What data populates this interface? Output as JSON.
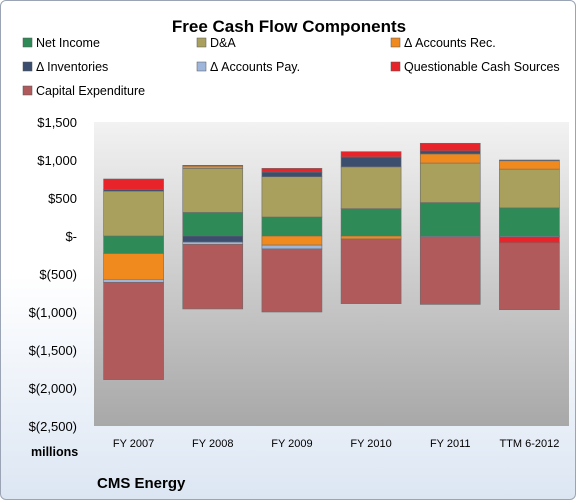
{
  "chart_data": {
    "type": "bar",
    "stacked": true,
    "title": "Free Cash Flow Components",
    "categories": [
      "FY 2007",
      "FY 2008",
      "FY 2009",
      "FY 2010",
      "FY 2011",
      "TTM 6-2012"
    ],
    "y_tick_labels": [
      "$1,500",
      "$1,000",
      "$500",
      "$-",
      "$(500)",
      "$(1,000)",
      "$(1,500)",
      "$(2,000)",
      "$(2,500)"
    ],
    "ylim": [
      -2500,
      1500
    ],
    "units_label": "millions",
    "footer": "CMS Energy",
    "grid": false,
    "legend_position": "top",
    "series": [
      {
        "name": "Net Income",
        "color": "#2e8b57",
        "values": [
          -230,
          310,
          250,
          360,
          440,
          370
        ]
      },
      {
        "name": "D&A",
        "color": "#a9a05e",
        "values": [
          590,
          580,
          530,
          550,
          520,
          510
        ]
      },
      {
        "name": "Δ Accounts Rec.",
        "color": "#f08a1e",
        "values": [
          -340,
          30,
          -120,
          -40,
          120,
          110
        ]
      },
      {
        "name": "Δ Inventories",
        "color": "#3b4e6e",
        "values": [
          20,
          -80,
          60,
          130,
          40,
          10
        ]
      },
      {
        "name": "Δ Accounts Pay.",
        "color": "#9fb6dc",
        "values": [
          -40,
          -30,
          -50,
          0,
          -10,
          -10
        ]
      },
      {
        "name": "Questionable Cash Sources",
        "color": "#e8242a",
        "values": [
          140,
          10,
          50,
          70,
          100,
          -80
        ]
      },
      {
        "name": "Capital Expenditure",
        "color": "#b05a5c",
        "values": [
          -1280,
          -850,
          -830,
          -850,
          -890,
          -880
        ]
      }
    ]
  }
}
